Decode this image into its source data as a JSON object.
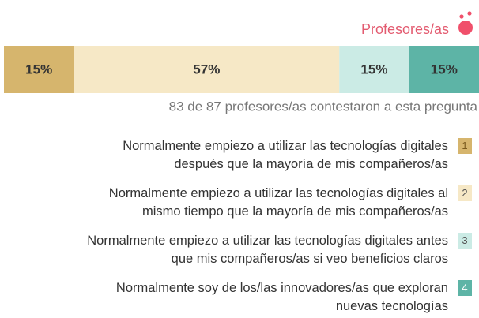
{
  "chart_data": {
    "type": "stacked-bar",
    "title": "Profesores/as",
    "subtitle": "83 de 87 profesores/as contestaron a esta pregunta",
    "series": [
      {
        "name": "Normalmente empiezo a utilizar las tecnologías digitales\ndespués que la mayoría de mis compañeros/as",
        "key": "1",
        "color": "#d6b56d",
        "values": [
          15
        ],
        "value_labels": [
          "15%"
        ]
      },
      {
        "name": "Normalmente empiezo a utilizar las tecnologías digitales al\nmismo tiempo que la mayoría de mis compañeros/as",
        "key": "2",
        "color": "#f6e8c6",
        "values": [
          57
        ],
        "value_labels": [
          "57%"
        ]
      },
      {
        "name": "Normalmente empiezo a utilizar las tecnologías digitales antes\nque mis compañeros/as si veo beneficios claros",
        "key": "3",
        "color": "#cbebe5",
        "values": [
          15
        ],
        "value_labels": [
          "15%"
        ]
      },
      {
        "name": "Normalmente soy de los/las innovadores/as que exploran\nnuevas tecnologías",
        "key": "4",
        "color": "#5db4a6",
        "values": [
          15
        ],
        "value_labels": [
          "15%"
        ]
      }
    ]
  }
}
